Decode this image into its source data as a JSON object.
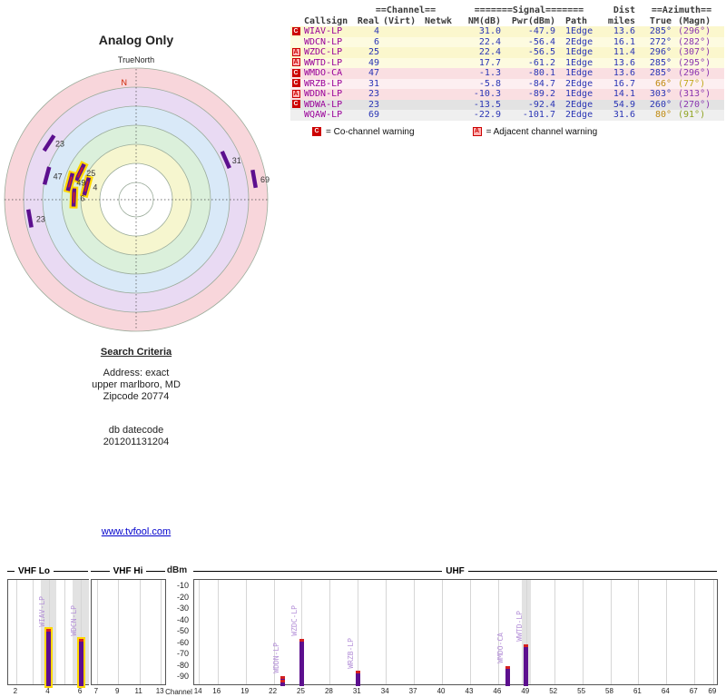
{
  "radar": {
    "title": "Analog Only",
    "subtitle": "TrueNorth",
    "north": "N",
    "north_color": "#cc2200",
    "ring_stroke": "#9bac9b",
    "rings": [
      {
        "r": 145,
        "color": "#f8d6db"
      },
      {
        "r": 124,
        "color": "#e9daf3"
      },
      {
        "r": 103,
        "color": "#d9e9f8"
      },
      {
        "r": 82,
        "color": "#dbf0db"
      },
      {
        "r": 61,
        "color": "#f6f6cf"
      },
      {
        "r": 40,
        "color": "#ffffff"
      },
      {
        "r": 19,
        "color": "#ffffff"
      }
    ]
  },
  "table": {
    "groups": {
      "channel": "==Channel==",
      "signal": "=======Signal=======",
      "dist": "Dist",
      "azimuth": "==Azimuth=="
    },
    "columns": [
      "Callsign",
      "Real",
      "(Virt)",
      "Netwk",
      "NM(dB)",
      "Pwr(dBm)",
      "Path",
      "miles",
      "True",
      "(Magn)"
    ]
  },
  "stations": [
    {
      "callsign": "WIAV-LP",
      "real": "4",
      "virt": "",
      "netwk": "",
      "nm": "31.0",
      "pwr": "-47.9",
      "path": "1Edge",
      "miles": "13.6",
      "az_true": "285°",
      "az_magn": "(296°)",
      "warn": "C",
      "row_bg": "#fbf7cd"
    },
    {
      "callsign": "WDCN-LP",
      "real": "6",
      "virt": "",
      "netwk": "",
      "nm": "22.4",
      "pwr": "-56.4",
      "path": "2Edge",
      "miles": "16.1",
      "az_true": "272°",
      "az_magn": "(282°)",
      "warn": "",
      "row_bg": "#fdfbe0"
    },
    {
      "callsign": "WZDC-LP",
      "real": "25",
      "virt": "",
      "netwk": "",
      "nm": "22.4",
      "pwr": "-56.5",
      "path": "1Edge",
      "miles": "11.4",
      "az_true": "296°",
      "az_magn": "(307°)",
      "warn": "A",
      "row_bg": "#fbf7cd"
    },
    {
      "callsign": "WWTD-LP",
      "real": "49",
      "virt": "",
      "netwk": "",
      "nm": "17.7",
      "pwr": "-61.2",
      "path": "1Edge",
      "miles": "13.6",
      "az_true": "285°",
      "az_magn": "(295°)",
      "warn": "A",
      "row_bg": "#fdfbe0"
    },
    {
      "callsign": "WMDO-CA",
      "real": "47",
      "virt": "",
      "netwk": "",
      "nm": "-1.3",
      "pwr": "-80.1",
      "path": "1Edge",
      "miles": "13.6",
      "az_true": "285°",
      "az_magn": "(296°)",
      "warn": "C",
      "row_bg": "#fadfe2"
    },
    {
      "callsign": "WRZB-LP",
      "real": "31",
      "virt": "",
      "netwk": "",
      "nm": "-5.8",
      "pwr": "-84.7",
      "path": "2Edge",
      "miles": "16.7",
      "az_true": "66°",
      "az_magn": "(77°)",
      "warn": "C",
      "row_bg": "#fdeff1",
      "true_color": "#c08a10",
      "magn_color": "#c0a818"
    },
    {
      "callsign": "WDDN-LP",
      "real": "23",
      "virt": "",
      "netwk": "",
      "nm": "-10.3",
      "pwr": "-89.2",
      "path": "1Edge",
      "miles": "14.1",
      "az_true": "303°",
      "az_magn": "(313°)",
      "warn": "A",
      "row_bg": "#fadfe2"
    },
    {
      "callsign": "WDWA-LP",
      "real": "23",
      "virt": "",
      "netwk": "",
      "nm": "-13.5",
      "pwr": "-92.4",
      "path": "2Edge",
      "miles": "54.9",
      "az_true": "260°",
      "az_magn": "(270°)",
      "warn": "C",
      "row_bg": "#e3e3e3",
      "spectrum_label": false
    },
    {
      "callsign": "WQAW-LP",
      "real": "69",
      "virt": "",
      "netwk": "",
      "nm": "-22.9",
      "pwr": "-101.7",
      "path": "2Edge",
      "miles": "31.6",
      "az_true": "80°",
      "az_magn": "(91°)",
      "warn": "",
      "row_bg": "#efefef",
      "true_color": "#c08a10",
      "magn_color": "#8fa320"
    }
  ],
  "legend": {
    "co_symbol": "C",
    "co_text": "= Co-channel warning",
    "adj_symbol": "A",
    "adj_text": "= Adjacent channel warning"
  },
  "criteria": {
    "heading": "Search Criteria",
    "address": "Address: exact",
    "city": "upper marlboro, MD",
    "zip": "Zipcode 20774",
    "datecode_label": "db datecode",
    "datecode": "201201131204"
  },
  "link": "www.tvfool.com",
  "spectrum": {
    "dbm_label": "dBm",
    "channel_label": "Channel",
    "y_ticks": [
      -10,
      -20,
      -30,
      -40,
      -50,
      -60,
      -70,
      -80,
      -90
    ],
    "gray_bands": [
      4,
      6,
      49
    ],
    "sections": [
      {
        "name": "VHF Lo",
        "ch_start": 2,
        "ch_end": 6,
        "labels": [
          2,
          4,
          6
        ],
        "grid_channels": [
          2,
          3,
          4,
          5,
          6
        ]
      },
      {
        "name": "VHF Hi",
        "ch_start": 7,
        "ch_end": 13,
        "labels": [
          7,
          9,
          11,
          13
        ],
        "grid_channels": [
          7,
          9,
          11,
          13
        ]
      },
      {
        "name": "UHF",
        "ch_start": 14,
        "ch_end": 69,
        "labels": [
          14,
          16,
          19,
          22,
          25,
          28,
          31,
          34,
          37,
          40,
          43,
          46,
          49,
          52,
          55,
          58,
          61,
          64,
          67,
          69
        ],
        "grid_channels": [
          14,
          16,
          19,
          22,
          25,
          28,
          31,
          34,
          37,
          40,
          43,
          46,
          49,
          52,
          55,
          58,
          61,
          64,
          67,
          69
        ]
      }
    ]
  },
  "colors": {
    "callsign": "#990099",
    "value": "#2a35b5",
    "az_true": "#2a35b5",
    "az_magn": "#8a35b0",
    "marker": "#5c0f8e",
    "marker_halo": "#ffd700",
    "marker_core": "#d42020",
    "link": "#0000cc"
  },
  "chart_data": [
    {
      "type": "scatter",
      "variant": "polar-radar",
      "title": "Analog Only",
      "orientation_label": "TrueNorth",
      "points": [
        {
          "callsign": "WIAV-LP",
          "channel": 4,
          "azimuth_true_deg": 285,
          "nm_db": 31.0
        },
        {
          "callsign": "WDCN-LP",
          "channel": 6,
          "azimuth_true_deg": 272,
          "nm_db": 22.4
        },
        {
          "callsign": "WZDC-LP",
          "channel": 25,
          "azimuth_true_deg": 296,
          "nm_db": 22.4
        },
        {
          "callsign": "WWTD-LP",
          "channel": 49,
          "azimuth_true_deg": 285,
          "nm_db": 17.7
        },
        {
          "callsign": "WMDO-CA",
          "channel": 47,
          "azimuth_true_deg": 285,
          "nm_db": -1.3
        },
        {
          "callsign": "WRZB-LP",
          "channel": 31,
          "azimuth_true_deg": 66,
          "nm_db": -5.8
        },
        {
          "callsign": "WDDN-LP",
          "channel": 23,
          "azimuth_true_deg": 303,
          "nm_db": -10.3
        },
        {
          "callsign": "WDWA-LP",
          "channel": 23,
          "azimuth_true_deg": 260,
          "nm_db": -13.5
        },
        {
          "callsign": "WQAW-LP",
          "channel": 69,
          "azimuth_true_deg": 80,
          "nm_db": -22.9
        }
      ]
    },
    {
      "type": "bar",
      "title": "Signal power by RF channel",
      "xlabel": "Channel",
      "ylabel": "dBm",
      "ylim": [
        -90,
        -10
      ],
      "sections": [
        "VHF Lo",
        "VHF Hi",
        "UHF"
      ],
      "x": [
        4,
        6,
        25,
        49,
        47,
        31,
        23,
        23,
        69
      ],
      "labels": [
        "WIAV-LP",
        "WDCN-LP",
        "WZDC-LP",
        "WWTD-LP",
        "WMDO-CA",
        "WRZB-LP",
        "WDDN-LP",
        "WDWA-LP",
        "WQAW-LP"
      ],
      "values": [
        -47.9,
        -56.4,
        -56.5,
        -61.2,
        -80.1,
        -84.7,
        -89.2,
        -92.4,
        -101.7
      ]
    }
  ]
}
